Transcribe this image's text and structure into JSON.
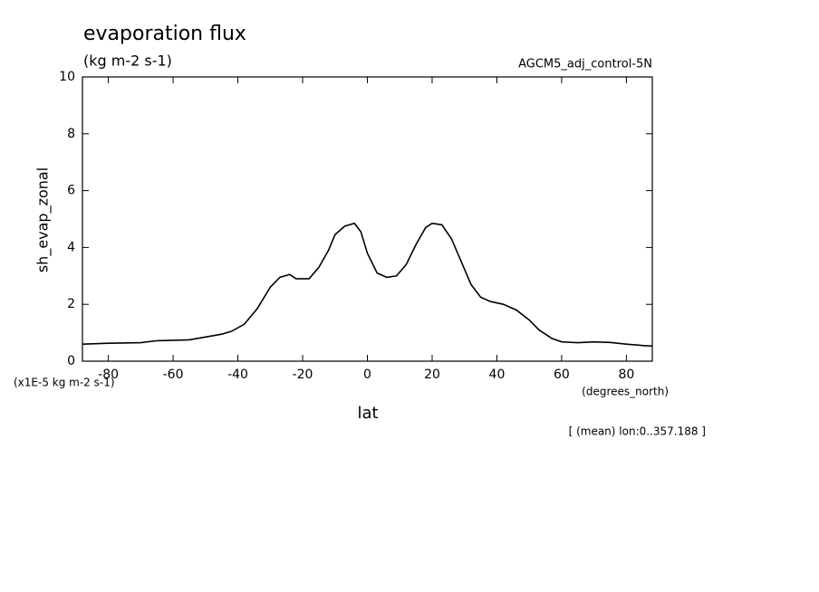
{
  "chart_data": {
    "type": "line",
    "title": "evaporation flux",
    "subtitle": "(kg m-2 s-1)",
    "dataset": "AGCM5_adj_control-5N",
    "y_label": "sh_evap_zonal",
    "y_unit": "(x1E-5 kg m-2 s-1)",
    "x_label": "lat",
    "x_unit": "(degrees_north)",
    "note": "[ (mean) lon:0..357.188 ]",
    "x": [
      -88,
      -80,
      -70,
      -65,
      -55,
      -50,
      -45,
      -42,
      -38,
      -34,
      -30,
      -27,
      -24,
      -22,
      -18,
      -15,
      -12,
      -10,
      -7,
      -4,
      -2,
      0,
      3,
      6,
      9,
      12,
      15,
      18,
      20,
      23,
      26,
      29,
      32,
      35,
      38,
      42,
      46,
      50,
      53,
      57,
      60,
      65,
      70,
      75,
      80,
      85,
      88
    ],
    "series": [
      {
        "color": "#000000",
        "values": [
          0.6,
          0.63,
          0.65,
          0.72,
          0.75,
          0.85,
          0.95,
          1.05,
          1.3,
          1.85,
          2.6,
          2.95,
          3.05,
          2.9,
          2.9,
          3.3,
          3.9,
          4.45,
          4.75,
          4.85,
          4.55,
          3.8,
          3.1,
          2.95,
          3.0,
          3.4,
          4.1,
          4.7,
          4.85,
          4.8,
          4.3,
          3.5,
          2.7,
          2.25,
          2.1,
          2.0,
          1.8,
          1.45,
          1.1,
          0.8,
          0.68,
          0.65,
          0.68,
          0.66,
          0.6,
          0.55,
          0.53
        ]
      }
    ],
    "xlim": [
      -88,
      88
    ],
    "xticks": [
      -80,
      -60,
      -40,
      -20,
      0,
      20,
      40,
      60,
      80
    ],
    "ylim": [
      0,
      10
    ],
    "yticks": [
      0,
      2,
      4,
      6,
      8,
      10
    ]
  }
}
